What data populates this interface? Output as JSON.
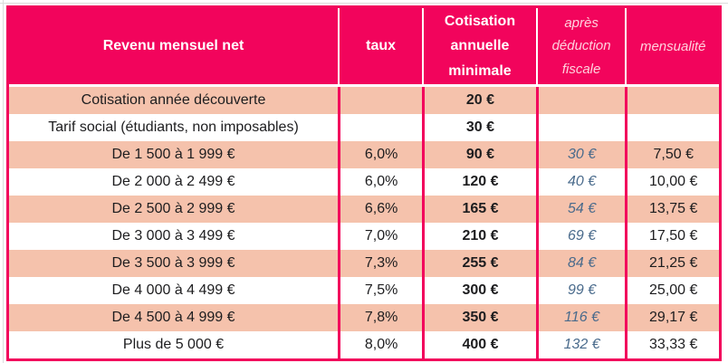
{
  "colors": {
    "pink": "#f2045c",
    "salmon": "#f5c2ac",
    "blue": "#4a6b8c",
    "ink": "#1d1d1f"
  },
  "header": {
    "revenu": "Revenu mensuel net",
    "taux": "taux",
    "cotisation": "Cotisation annuelle minimale",
    "apres": "après déduction fiscale",
    "mensualite": "mensualité"
  },
  "rows": [
    {
      "revenu": "Cotisation année découverte",
      "taux": "",
      "cotisation": "20 €",
      "apres": "",
      "mensualite": ""
    },
    {
      "revenu": "Tarif social (étudiants, non imposables)",
      "taux": "",
      "cotisation": "30 €",
      "apres": "",
      "mensualite": ""
    },
    {
      "revenu": "De 1 500 à 1 999 €",
      "taux": "6,0%",
      "cotisation": "90 €",
      "apres": "30 €",
      "mensualite": "7,50 €"
    },
    {
      "revenu": "De 2 000 à 2 499 €",
      "taux": "6,0%",
      "cotisation": "120 €",
      "apres": "40 €",
      "mensualite": "10,00 €"
    },
    {
      "revenu": "De 2 500 à 2 999 €",
      "taux": "6,6%",
      "cotisation": "165 €",
      "apres": "54 €",
      "mensualite": "13,75 €"
    },
    {
      "revenu": "De 3 000 à 3 499 €",
      "taux": "7,0%",
      "cotisation": "210 €",
      "apres": "69 €",
      "mensualite": "17,50 €"
    },
    {
      "revenu": "De 3 500 à 3 999 €",
      "taux": "7,3%",
      "cotisation": "255 €",
      "apres": "84 €",
      "mensualite": "21,25 €"
    },
    {
      "revenu": "De 4 000 à 4 499 €",
      "taux": "7,5%",
      "cotisation": "300 €",
      "apres": "99 €",
      "mensualite": "25,00 €"
    },
    {
      "revenu": "De 4 500 à 4 999 €",
      "taux": "7,8%",
      "cotisation": "350 €",
      "apres": "116 €",
      "mensualite": "29,17 €"
    },
    {
      "revenu": "Plus de 5 000 €",
      "taux": "8,0%",
      "cotisation": "400 €",
      "apres": "132 €",
      "mensualite": "33,33 €"
    }
  ]
}
